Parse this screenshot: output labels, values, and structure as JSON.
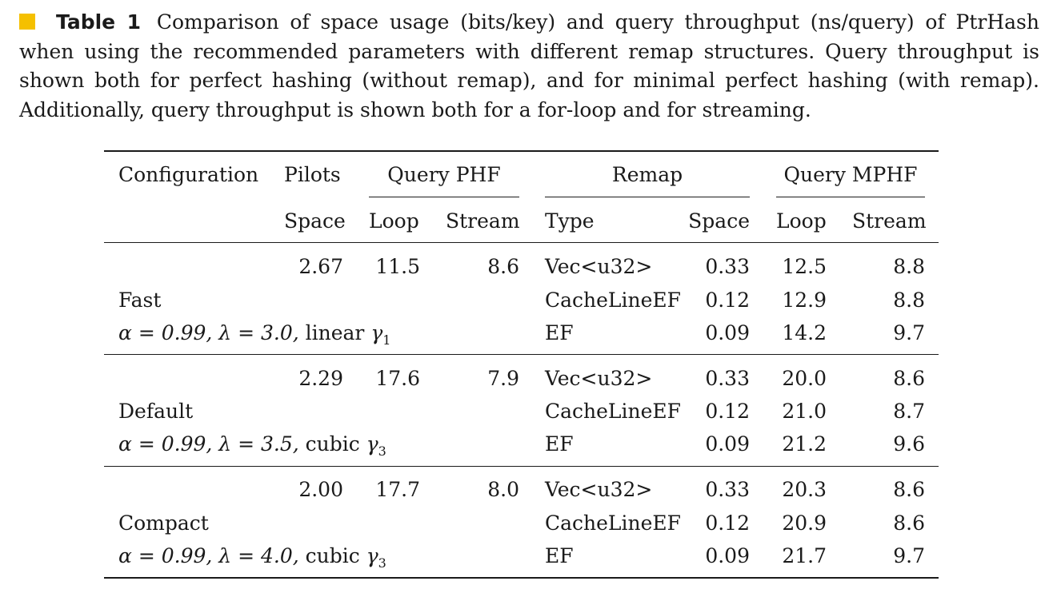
{
  "caption": {
    "label": "Table 1",
    "text": "Comparison of space usage (bits/key) and query throughput (ns/query) of PtrHash when using the recommended parameters with different remap structures. Query throughput is shown both for perfect hashing (without remap), and for minimal perfect hashing (with remap). Additionally, query throughput is shown both for a for-loop and for streaming.",
    "accent_color": "#f5c000"
  },
  "header": {
    "configuration": "Configuration",
    "pilots": "Pilots",
    "query_phf": "Query PHF",
    "remap": "Remap",
    "query_mphf": "Query MPHF",
    "space": "Space",
    "loop": "Loop",
    "stream": "Stream",
    "type": "Type",
    "remap_space": "Space",
    "mphf_loop": "Loop",
    "mphf_stream": "Stream"
  },
  "groups": [
    {
      "name": "Fast",
      "params": {
        "alpha": "α = 0.99,",
        "lambda": "λ = 3.0,",
        "func": "linear",
        "gamma": "γ",
        "sub": "1"
      },
      "pilots_space": "2.67",
      "phf_loop": "11.5",
      "phf_stream": "8.6",
      "rows": [
        {
          "type": "Vec<u32>",
          "space": "0.33",
          "loop": "12.5",
          "stream": "8.8"
        },
        {
          "type": "CacheLineEF",
          "space": "0.12",
          "loop": "12.9",
          "stream": "8.8"
        },
        {
          "type": "EF",
          "space": "0.09",
          "loop": "14.2",
          "stream": "9.7"
        }
      ]
    },
    {
      "name": "Default",
      "params": {
        "alpha": "α = 0.99,",
        "lambda": "λ = 3.5,",
        "func": "cubic",
        "gamma": "γ",
        "sub": "3"
      },
      "pilots_space": "2.29",
      "phf_loop": "17.6",
      "phf_stream": "7.9",
      "rows": [
        {
          "type": "Vec<u32>",
          "space": "0.33",
          "loop": "20.0",
          "stream": "8.6"
        },
        {
          "type": "CacheLineEF",
          "space": "0.12",
          "loop": "21.0",
          "stream": "8.7"
        },
        {
          "type": "EF",
          "space": "0.09",
          "loop": "21.2",
          "stream": "9.6"
        }
      ]
    },
    {
      "name": "Compact",
      "params": {
        "alpha": "α = 0.99,",
        "lambda": "λ = 4.0,",
        "func": "cubic",
        "gamma": "γ",
        "sub": "3"
      },
      "pilots_space": "2.00",
      "phf_loop": "17.7",
      "phf_stream": "8.0",
      "rows": [
        {
          "type": "Vec<u32>",
          "space": "0.33",
          "loop": "20.3",
          "stream": "8.6"
        },
        {
          "type": "CacheLineEF",
          "space": "0.12",
          "loop": "20.9",
          "stream": "8.6"
        },
        {
          "type": "EF",
          "space": "0.09",
          "loop": "21.7",
          "stream": "9.7"
        }
      ]
    }
  ]
}
